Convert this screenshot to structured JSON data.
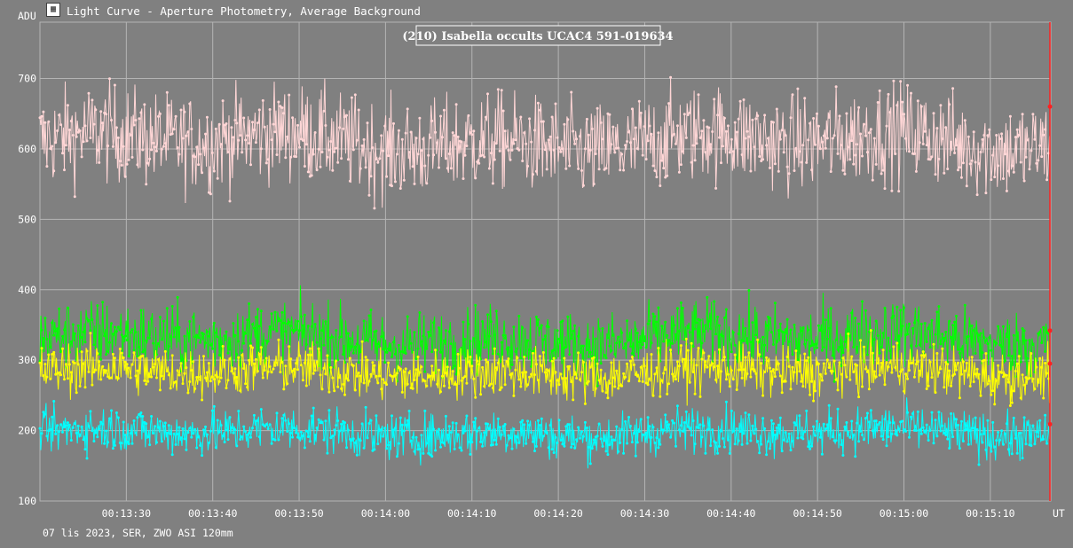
{
  "window": {
    "title": "Light Curve - Aperture Photometry, Average Background",
    "icon": "light-curve-app-icon"
  },
  "footer": {
    "text": "07 lis 2023, SER, ZWO ASI 120mm"
  },
  "colors": {
    "background": "#808080",
    "grid": "#b4b4b4",
    "target": "#ffd6d6",
    "green": "#00ff00",
    "yellow": "#ffff00",
    "cyan": "#00ffff",
    "cursor": "#ff2020"
  },
  "chart_data": {
    "type": "line",
    "title": "(210) Isabella occults UCAC4 591-019634",
    "ylabel": "ADU",
    "xlabel": "UT",
    "ylim": [
      100,
      780
    ],
    "y_ticks": [
      100,
      200,
      300,
      400,
      500,
      600,
      700
    ],
    "x_ticks": [
      "00:13:30",
      "00:13:40",
      "00:13:50",
      "00:14:00",
      "00:14:10",
      "00:14:20",
      "00:14:30",
      "00:14:40",
      "00:14:50",
      "00:15:00",
      "00:15:10"
    ],
    "x_range_seconds": [
      "00:13:20",
      "00:15:17"
    ],
    "grid": true,
    "cursor_time": "00:15:16.9",
    "series": [
      {
        "key": "target",
        "mean": 610,
        "amplitude": 38,
        "points": 1160
      },
      {
        "key": "green",
        "mean": 330,
        "amplitude": 26,
        "points": 1160
      },
      {
        "key": "yellow",
        "mean": 283,
        "amplitude": 20,
        "points": 1160
      },
      {
        "key": "cyan",
        "mean": 197,
        "amplitude": 18,
        "points": 1160
      }
    ]
  }
}
